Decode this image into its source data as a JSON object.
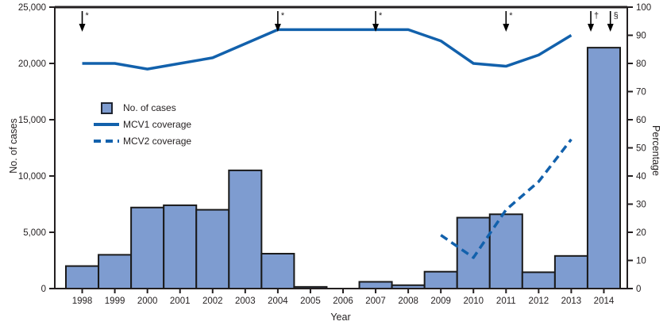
{
  "figure": {
    "y_left_title": "No. of cases",
    "y_right_title": "Percentage",
    "x_title": "Year",
    "legend": {
      "cases": "No. of cases",
      "mcv1": "MCV1 coverage",
      "mcv2": "MCV2 coverage"
    }
  },
  "colors": {
    "bar_fill": "#7E9CD0",
    "bar_stroke": "#1A1A1A",
    "line_blue": "#1261AC",
    "axis": "#231F20",
    "arrow": "#000000"
  },
  "chart_data": {
    "type": "bar+line",
    "categories": [
      1998,
      1999,
      2000,
      2001,
      2002,
      2003,
      2004,
      2005,
      2006,
      2007,
      2008,
      2009,
      2010,
      2011,
      2012,
      2013,
      2014
    ],
    "bar_series": {
      "name": "No. of cases",
      "axis": "left",
      "values": [
        2000,
        3000,
        7200,
        7400,
        7000,
        10500,
        3100,
        150,
        0,
        600,
        300,
        1500,
        6300,
        6600,
        1450,
        2900,
        21400
      ]
    },
    "line_series": [
      {
        "name": "MCV1 coverage",
        "style": "solid",
        "axis": "right",
        "x": [
          1998,
          1999,
          2000,
          2001,
          2002,
          2003,
          2004,
          2005,
          2006,
          2007,
          2008,
          2009,
          2010,
          2011,
          2012,
          2013
        ],
        "values": [
          80,
          80,
          78,
          80,
          82,
          87,
          92,
          92,
          92,
          92,
          92,
          88,
          80,
          79,
          83,
          90
        ]
      },
      {
        "name": "MCV2 coverage",
        "style": "dashed",
        "axis": "right",
        "x": [
          2009,
          2010,
          2011,
          2012,
          2013
        ],
        "values": [
          19,
          11,
          28,
          38,
          53
        ]
      }
    ],
    "y_left": {
      "label": "No. of cases",
      "min": 0,
      "max": 25000,
      "tick_step": 5000,
      "tick_labels": [
        "0",
        "5,000",
        "10,000",
        "15,000",
        "20,000",
        "25,000"
      ]
    },
    "y_right": {
      "label": "Percentage",
      "min": 0,
      "max": 100,
      "tick_step": 10,
      "tick_labels": [
        "0",
        "10",
        "20",
        "30",
        "40",
        "50",
        "60",
        "70",
        "80",
        "90",
        "100"
      ]
    },
    "x_axis": {
      "label": "Year",
      "tick_labels": [
        "1998",
        "1999",
        "2000",
        "2001",
        "2002",
        "2003",
        "2004",
        "2005",
        "2006",
        "2007",
        "2008",
        "2009",
        "2010",
        "2011",
        "2012",
        "2013",
        "2014"
      ]
    },
    "annotations": [
      {
        "year": 1998,
        "symbol": "*"
      },
      {
        "year": 2004,
        "symbol": "*"
      },
      {
        "year": 2007,
        "symbol": "*"
      },
      {
        "year": 2011,
        "symbol": "*"
      },
      {
        "year": 2013.6,
        "symbol": "†"
      },
      {
        "year": 2014.2,
        "symbol": "§"
      }
    ],
    "legend_position": "upper-left-inside",
    "grid": false
  }
}
